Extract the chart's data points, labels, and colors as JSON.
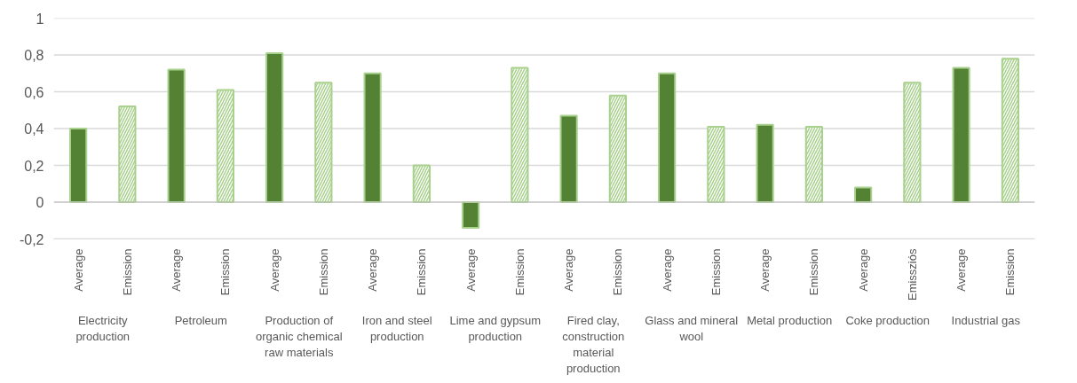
{
  "chart_data": {
    "type": "bar",
    "categories": [
      "Average",
      "Emission",
      "Average",
      "Emission",
      "Average",
      "Emission",
      "Average",
      "Emission",
      "Average",
      "Emission",
      "Average",
      "Emission",
      "Average",
      "Emission",
      "Average",
      "Emission",
      "Average",
      "Emissziós",
      "Average",
      "Emission"
    ],
    "series": [
      {
        "color": "#548235",
        "values": [
          0.4,
          null,
          0.72,
          null,
          0.81,
          null,
          0.7,
          null,
          -0.14,
          null,
          0.47,
          null,
          0.7,
          null,
          0.42,
          null,
          0.08,
          null,
          0.73,
          null
        ]
      },
      {
        "color": "#a9d18e",
        "values": [
          null,
          0.52,
          null,
          0.61,
          null,
          0.65,
          null,
          0.2,
          null,
          0.73,
          null,
          0.58,
          null,
          0.41,
          null,
          0.41,
          null,
          0.65,
          null,
          0.78
        ]
      }
    ],
    "annotations": [
      "Electricity production",
      "Petroleum",
      "Production of organic chemical raw materials",
      "Iron and steel production",
      "Lime and gypsum production",
      "Fired clay, construction material production",
      "Glass and mineral wool",
      "Metal production",
      "Coke production",
      "Industrial gas"
    ],
    "ylim": [
      -0.2,
      1
    ],
    "yticks": [
      {
        "value": -0.2,
        "label": "-0,2"
      },
      0,
      {
        "value": 0.2,
        "label": "0,2"
      },
      {
        "value": 0.4,
        "label": "0,4"
      },
      {
        "value": 0.6,
        "label": "0,6"
      },
      {
        "value": 0.8,
        "label": "0,8"
      },
      1
    ],
    "grid": "y"
  }
}
